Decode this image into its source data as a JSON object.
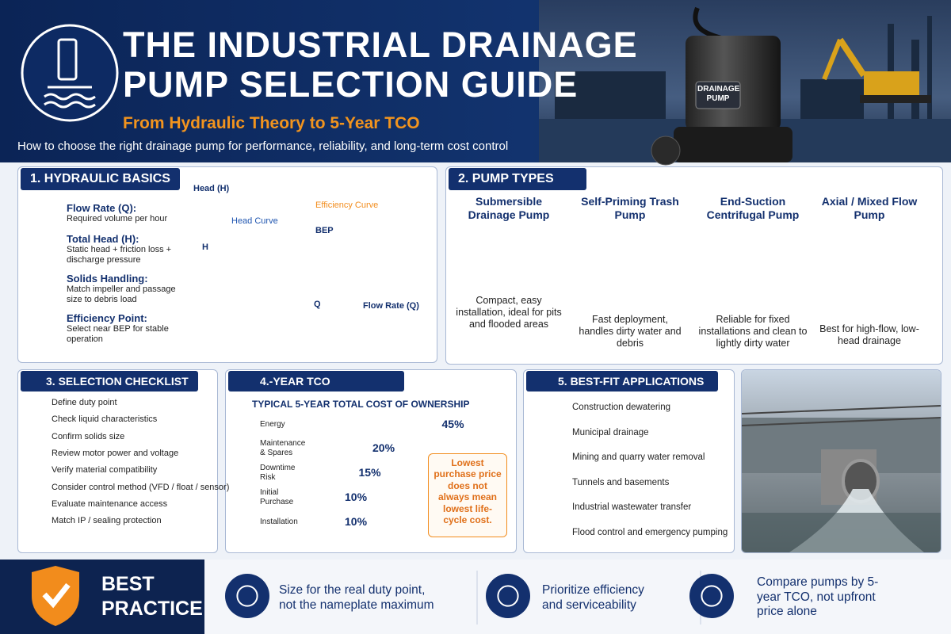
{
  "header": {
    "title_line1": "THE INDUSTRIAL DRAINAGE",
    "title_line2": "PUMP SELECTION GUIDE",
    "subtitle": "From Hydraulic Theory to 5-Year TCO",
    "tagline": "How to choose the right drainage pump for performance, reliability, and long-term cost control",
    "pump_label": "DRAINAGE PUMP"
  },
  "hydraulic": {
    "title": "1. HYDRAULIC BASICS",
    "items": [
      {
        "label": "Flow Rate (Q):",
        "text": "Required volume per hour"
      },
      {
        "label": "Total Head (H):",
        "text": "Static head + friction loss + discharge pressure"
      },
      {
        "label": "Solids Handling:",
        "text": "Match impeller and passage size to debris load"
      },
      {
        "label": "Efficiency Point:",
        "text": "Select near BEP for stable operation"
      }
    ],
    "chart": {
      "y_axis": "Head (H)",
      "x_axis": "Flow Rate (Q)",
      "head_curve": "Head Curve",
      "efficiency_curve": "Efficiency Curve",
      "bep": "BEP",
      "h": "H",
      "q": "Q"
    }
  },
  "pump_types": {
    "title": "2. PUMP TYPES",
    "items": [
      {
        "name": "Submersible Drainage Pump",
        "description": "Compact, easy installation, ideal for pits and flooded areas"
      },
      {
        "name": "Self-Priming Trash Pump",
        "description": "Fast deployment, handles dirty water and debris"
      },
      {
        "name": "End-Suction Centrifugal Pump",
        "description": "Reliable for fixed installations and clean to lightly dirty water"
      },
      {
        "name": "Axial / Mixed Flow Pump",
        "description": "Best for high-flow, low-head drainage"
      }
    ]
  },
  "checklist": {
    "title": "3. SELECTION CHECKLIST",
    "items": [
      "Define duty point",
      "Check liquid characteristics",
      "Confirm solids size",
      "Review motor power and voltage",
      "Verify material compatibility",
      "Consider control method (VFD / float / sensor)",
      "Evaluate maintenance access",
      "Match IP / sealing protection"
    ]
  },
  "tco": {
    "title": "4.-YEAR TCO",
    "subtitle": "TYPICAL 5-YEAR TOTAL COST OF OWNERSHIP",
    "categories": [
      "Energy",
      "Maintenance & Spares",
      "Downtime Risk",
      "Initial Purchase",
      "Installation"
    ],
    "values": [
      45,
      20,
      15,
      10,
      10
    ],
    "value_labels": [
      "45%",
      "20%",
      "15%",
      "10%",
      "10%"
    ],
    "colors": [
      "#f28c1c",
      "#2a5bc4",
      "#2aa5b5",
      "#1b2f6e",
      "#8c8c8c"
    ],
    "note": "Lowest purchase price does not always mean lowest life-cycle cost."
  },
  "applications": {
    "title": "5. BEST-FIT APPLICATIONS",
    "items": [
      "Construction dewatering",
      "Municipal drainage",
      "Mining and quarry water removal",
      "Tunnels and basements",
      "Industrial wastewater transfer",
      "Flood control and emergency pumping"
    ]
  },
  "best_practice": {
    "title": "BEST PRACTICE",
    "items": [
      "Size for the real duty point, not the nameplate maximum",
      "Prioritize efficiency and serviceability",
      "Compare pumps by 5-year TCO, not upfront price alone"
    ]
  }
}
